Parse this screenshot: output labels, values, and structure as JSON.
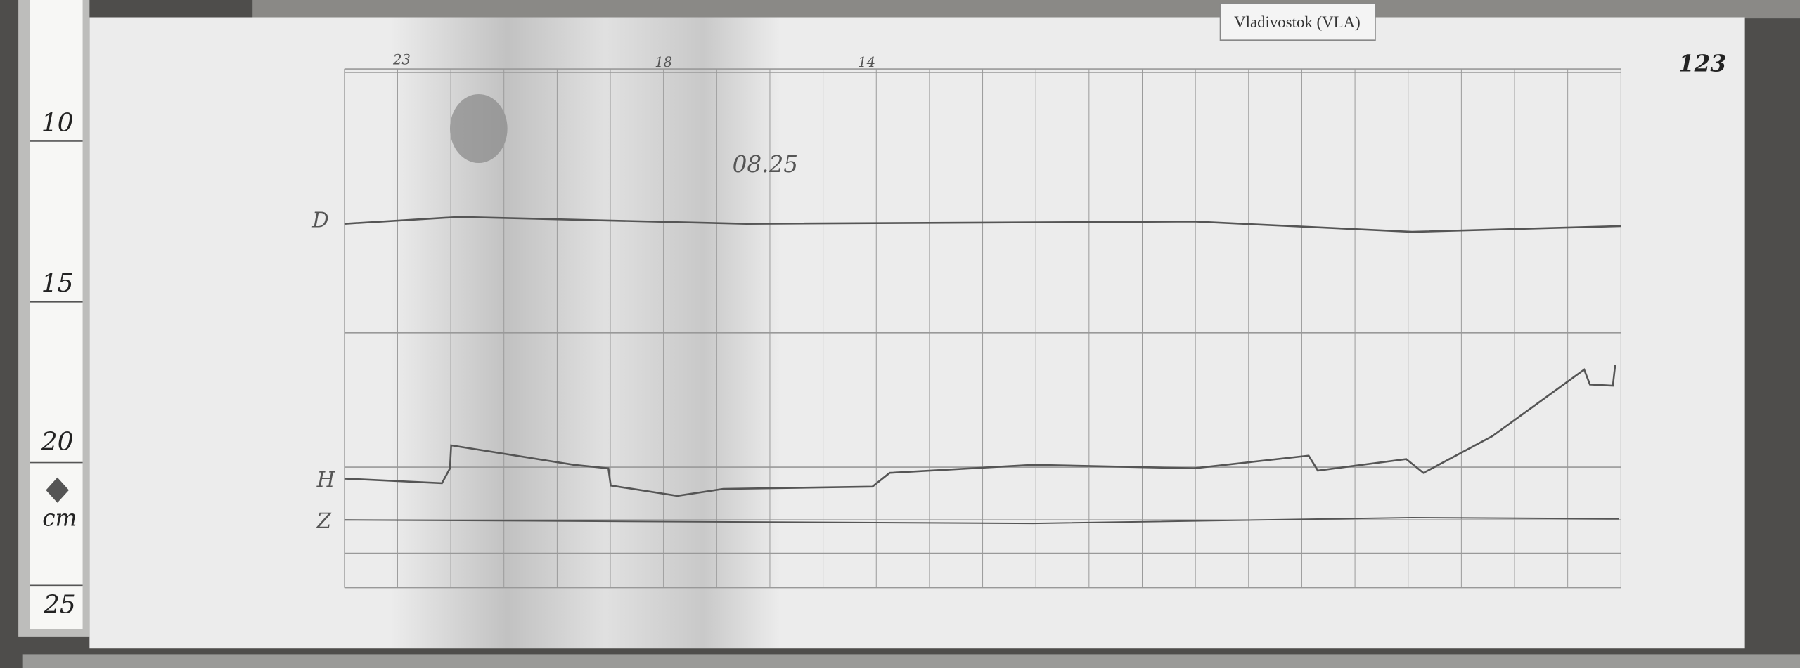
{
  "station_label": "Vladivostok (VLA)",
  "ruler": {
    "marks": [
      "10",
      "15",
      "20",
      "25"
    ],
    "unit": "cm"
  },
  "sheet": {
    "annotation": "08.25",
    "number": "123",
    "hour_labels": [
      "23",
      "18",
      "14"
    ],
    "trace_labels": [
      "D",
      "H",
      "Z"
    ]
  }
}
